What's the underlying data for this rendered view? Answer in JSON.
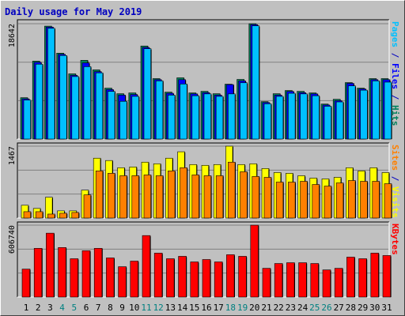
{
  "title": "Daily usage for May 2019",
  "legend_separator": " / ",
  "chart_data": [
    {
      "type": "bar",
      "ylim": [
        0,
        19285
      ],
      "yticks": [
        18642
      ],
      "gridlines": [
        6214,
        12428
      ],
      "series": [
        {
          "name": "Pages",
          "color": "#00c0ff",
          "values": [
            6300,
            12100,
            17900,
            13500,
            10100,
            11700,
            10700,
            7700,
            6100,
            6900,
            14600,
            9400,
            7100,
            8900,
            7000,
            7300,
            6900,
            7300,
            9100,
            18300,
            5700,
            6900,
            7400,
            7300,
            7000,
            5300,
            6000,
            8600,
            7900,
            9400,
            9200
          ]
        },
        {
          "name": "Files",
          "color": "#0000ff",
          "values": [
            6500,
            12400,
            18100,
            13700,
            10300,
            12300,
            10900,
            8000,
            7100,
            7200,
            14800,
            9600,
            7400,
            9600,
            7300,
            7500,
            7100,
            8800,
            9400,
            18500,
            5900,
            7100,
            7700,
            7500,
            7300,
            5500,
            6200,
            9000,
            8100,
            9600,
            9600
          ]
        },
        {
          "name": "Hits",
          "color": "#00805c",
          "values": [
            6685,
            12600,
            18256,
            13885,
            10542,
            12728,
            11185,
            8228,
            7328,
            7457,
            15042,
            9771,
            7585,
            9899,
            7457,
            7714,
            7328,
            8871,
            9642,
            18642,
            6043,
            7328,
            7843,
            7714,
            7457,
            5657,
            6428,
            9128,
            8228,
            9771,
            9771
          ]
        }
      ]
    },
    {
      "type": "bar",
      "ylim": [
        0,
        1532
      ],
      "yticks": [
        1467
      ],
      "gridlines": [
        489,
        978
      ],
      "series": [
        {
          "name": "Sites",
          "color": "#ff8000",
          "values": [
            130,
            130,
            81,
            98,
            114,
            473,
            962,
            913,
            864,
            864,
            880,
            864,
            962,
            1027,
            880,
            864,
            864,
            1141,
            945,
            848,
            831,
            734,
            734,
            750,
            685,
            652,
            717,
            766,
            750,
            750,
            701
          ]
        },
        {
          "name": "Visits",
          "color": "#ffff00",
          "values": [
            261,
            196,
            424,
            147,
            147,
            570,
            1222,
            1174,
            1027,
            1043,
            1141,
            1108,
            1222,
            1353,
            1092,
            1076,
            1092,
            1467,
            1092,
            1108,
            1011,
            929,
            913,
            864,
            815,
            799,
            831,
            1027,
            962,
            1027,
            929
          ]
        }
      ]
    },
    {
      "type": "bar",
      "ylim": [
        0,
        633706
      ],
      "yticks": [
        606740
      ],
      "gridlines": [
        202247,
        404493
      ],
      "series": [
        {
          "name": "KBytes",
          "color": "#ff0000",
          "values": [
            235954,
            411236,
            539324,
            417976,
            323595,
            391011,
            411236,
            330337,
            256179,
            303370,
            519100,
            370786,
            323595,
            343819,
            296628,
            316853,
            296628,
            357303,
            343819,
            606740,
            242696,
            283145,
            289887,
            289887,
            283145,
            229213,
            242696,
            337078,
            323595,
            370786,
            350561
          ]
        }
      ],
      "categories": [
        "1",
        "2",
        "3",
        "4",
        "5",
        "6",
        "7",
        "8",
        "9",
        "10",
        "11",
        "12",
        "13",
        "14",
        "15",
        "16",
        "17",
        "18",
        "19",
        "20",
        "21",
        "22",
        "23",
        "24",
        "25",
        "26",
        "27",
        "28",
        "29",
        "30",
        "31"
      ],
      "category_colors": [
        "#000000",
        "#000000",
        "#000000",
        "#008080",
        "#008080",
        "#000000",
        "#000000",
        "#000000",
        "#000000",
        "#000000",
        "#008080",
        "#008080",
        "#000000",
        "#000000",
        "#000000",
        "#000000",
        "#000000",
        "#008080",
        "#008080",
        "#000000",
        "#000000",
        "#000000",
        "#000000",
        "#000000",
        "#008080",
        "#008080",
        "#000000",
        "#000000",
        "#000000",
        "#000000",
        "#000000"
      ]
    }
  ]
}
